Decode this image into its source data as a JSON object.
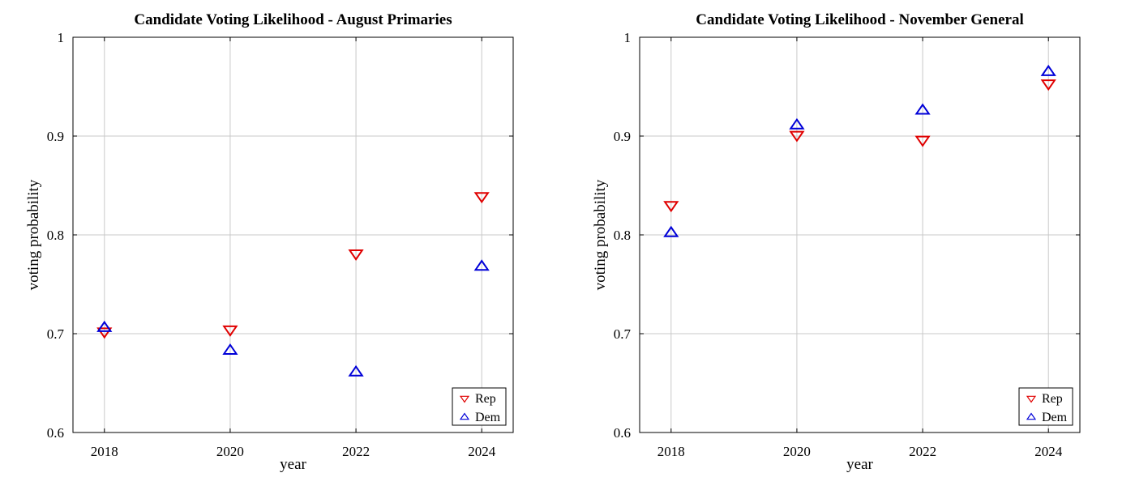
{
  "chart_data": [
    {
      "type": "scatter",
      "title": "Candidate Voting Likelihood - August Primaries",
      "xlabel": "year",
      "ylabel": "voting probability",
      "x": [
        2018,
        2020,
        2022,
        2024
      ],
      "x_ticks": [
        "2018",
        "2020",
        "2022",
        "2024"
      ],
      "y_ticks": [
        "0.6",
        "0.7",
        "0.8",
        "0.9",
        "1"
      ],
      "xlim": [
        2017.5,
        2024.5
      ],
      "ylim": [
        0.6,
        1.0
      ],
      "grid": true,
      "legend_position": "bottom-right",
      "series": [
        {
          "name": "Rep",
          "marker": "triangle-down",
          "color": "#e00000",
          "values": [
            0.702,
            0.704,
            0.781,
            0.839
          ]
        },
        {
          "name": "Dem",
          "marker": "triangle-up",
          "color": "#0000d8",
          "values": [
            0.706,
            0.683,
            0.661,
            0.768
          ]
        }
      ]
    },
    {
      "type": "scatter",
      "title": "Candidate Voting Likelihood - November General",
      "xlabel": "year",
      "ylabel": "voting probability",
      "x": [
        2018,
        2020,
        2022,
        2024
      ],
      "x_ticks": [
        "2018",
        "2020",
        "2022",
        "2024"
      ],
      "y_ticks": [
        "0.6",
        "0.7",
        "0.8",
        "0.9",
        "1"
      ],
      "xlim": [
        2017.5,
        2024.5
      ],
      "ylim": [
        0.6,
        1.0
      ],
      "grid": true,
      "legend_position": "bottom-right",
      "series": [
        {
          "name": "Rep",
          "marker": "triangle-down",
          "color": "#e00000",
          "values": [
            0.83,
            0.901,
            0.896,
            0.953
          ]
        },
        {
          "name": "Dem",
          "marker": "triangle-up",
          "color": "#0000d8",
          "values": [
            0.802,
            0.911,
            0.926,
            0.965
          ]
        }
      ]
    }
  ]
}
